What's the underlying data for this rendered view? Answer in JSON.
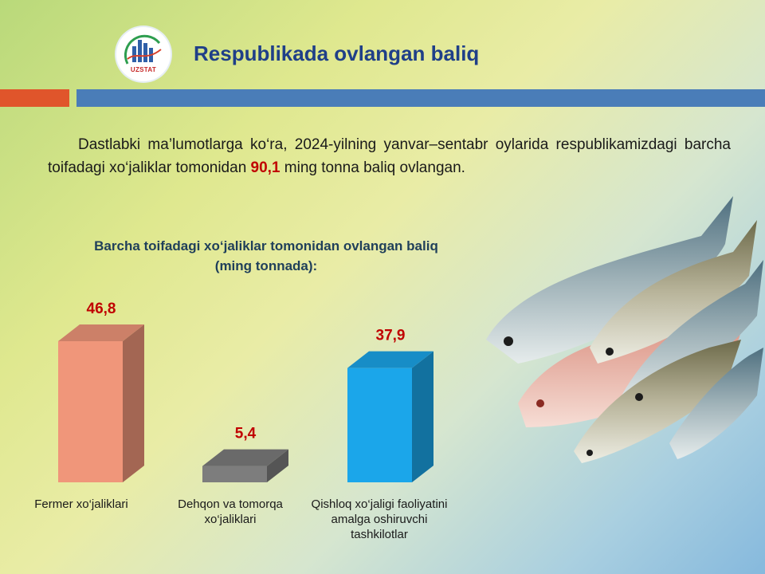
{
  "header": {
    "logo_text": "UZSTAT",
    "title": "Respublikada ovlangan baliq"
  },
  "intro": {
    "text_before": "Dastlabki ma’lumotlarga ko‘ra, 2024-yilning yanvar–sentabr oylarida respublikamizdagi barcha toifadagi xo‘jaliklar tomonidan ",
    "highlight": "90,1",
    "text_after": " ming tonna baliq ovlangan."
  },
  "colors": {
    "accent_title": "#1f3f88",
    "highlight": "#c00000",
    "orange_bar": "#e0552b",
    "blue_bar": "#4a7db8"
  },
  "chart_data": {
    "type": "bar",
    "title_line1": "Barcha toifadagi xo‘jaliklar tomonidan ovlangan baliq",
    "title_line2": "(ming tonnada):",
    "categories": [
      "Fermer xo‘jaliklari",
      "Dehqon va tomorqa xo‘jaliklari",
      "Qishloq xo‘jaligi faoliyatini amalga oshiruvchi tashkilotlar"
    ],
    "values": [
      46.8,
      5.4,
      37.9
    ],
    "value_labels": [
      "46,8",
      "5,4",
      "37,9"
    ],
    "bar_colors": [
      "#f0967a",
      "#7d7d7d",
      "#1ba6ea"
    ],
    "ylim": [
      0,
      50
    ],
    "grid": false,
    "legend": "none"
  },
  "image": {
    "icon": "fish-photo"
  }
}
